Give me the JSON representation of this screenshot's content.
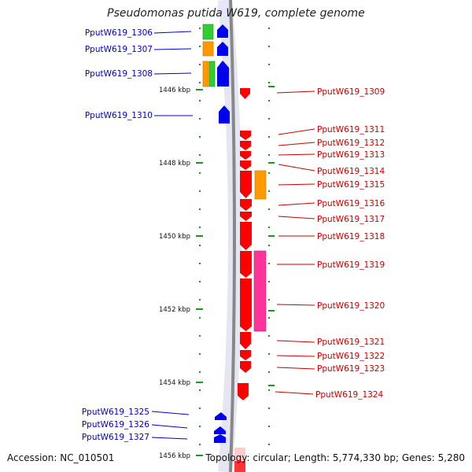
{
  "title": "Pseudomonas putida W619, complete genome",
  "accession": "Accession: NC_010501",
  "topology": "Topology: circular; Length: 5,774,330 bp; Genes: 5,280",
  "colors": {
    "left_label": "#0000cc",
    "right_label": "#cc0000",
    "dot": "#1a9a1a",
    "axis": "#888888"
  },
  "scale_ticks": [
    "1446 kbp",
    "1448 kbp",
    "1450 kbp",
    "1452 kbp",
    "1454 kbp",
    "1456 kbp"
  ],
  "left_genes": [
    "PputW619_1306",
    "PputW619_1307",
    "PputW619_1308",
    "PputW619_1310",
    "PputW619_1325",
    "PputW619_1326",
    "PputW619_1327"
  ],
  "right_genes": [
    "PputW619_1309",
    "PputW619_1311",
    "PputW619_1312",
    "PputW619_1313",
    "PputW619_1314",
    "PputW619_1315",
    "PputW619_1316",
    "PputW619_1317",
    "PputW619_1318",
    "PputW619_1319",
    "PputW619_1320",
    "PputW619_1321",
    "PputW619_1322",
    "PputW619_1323",
    "PputW619_1324"
  ]
}
